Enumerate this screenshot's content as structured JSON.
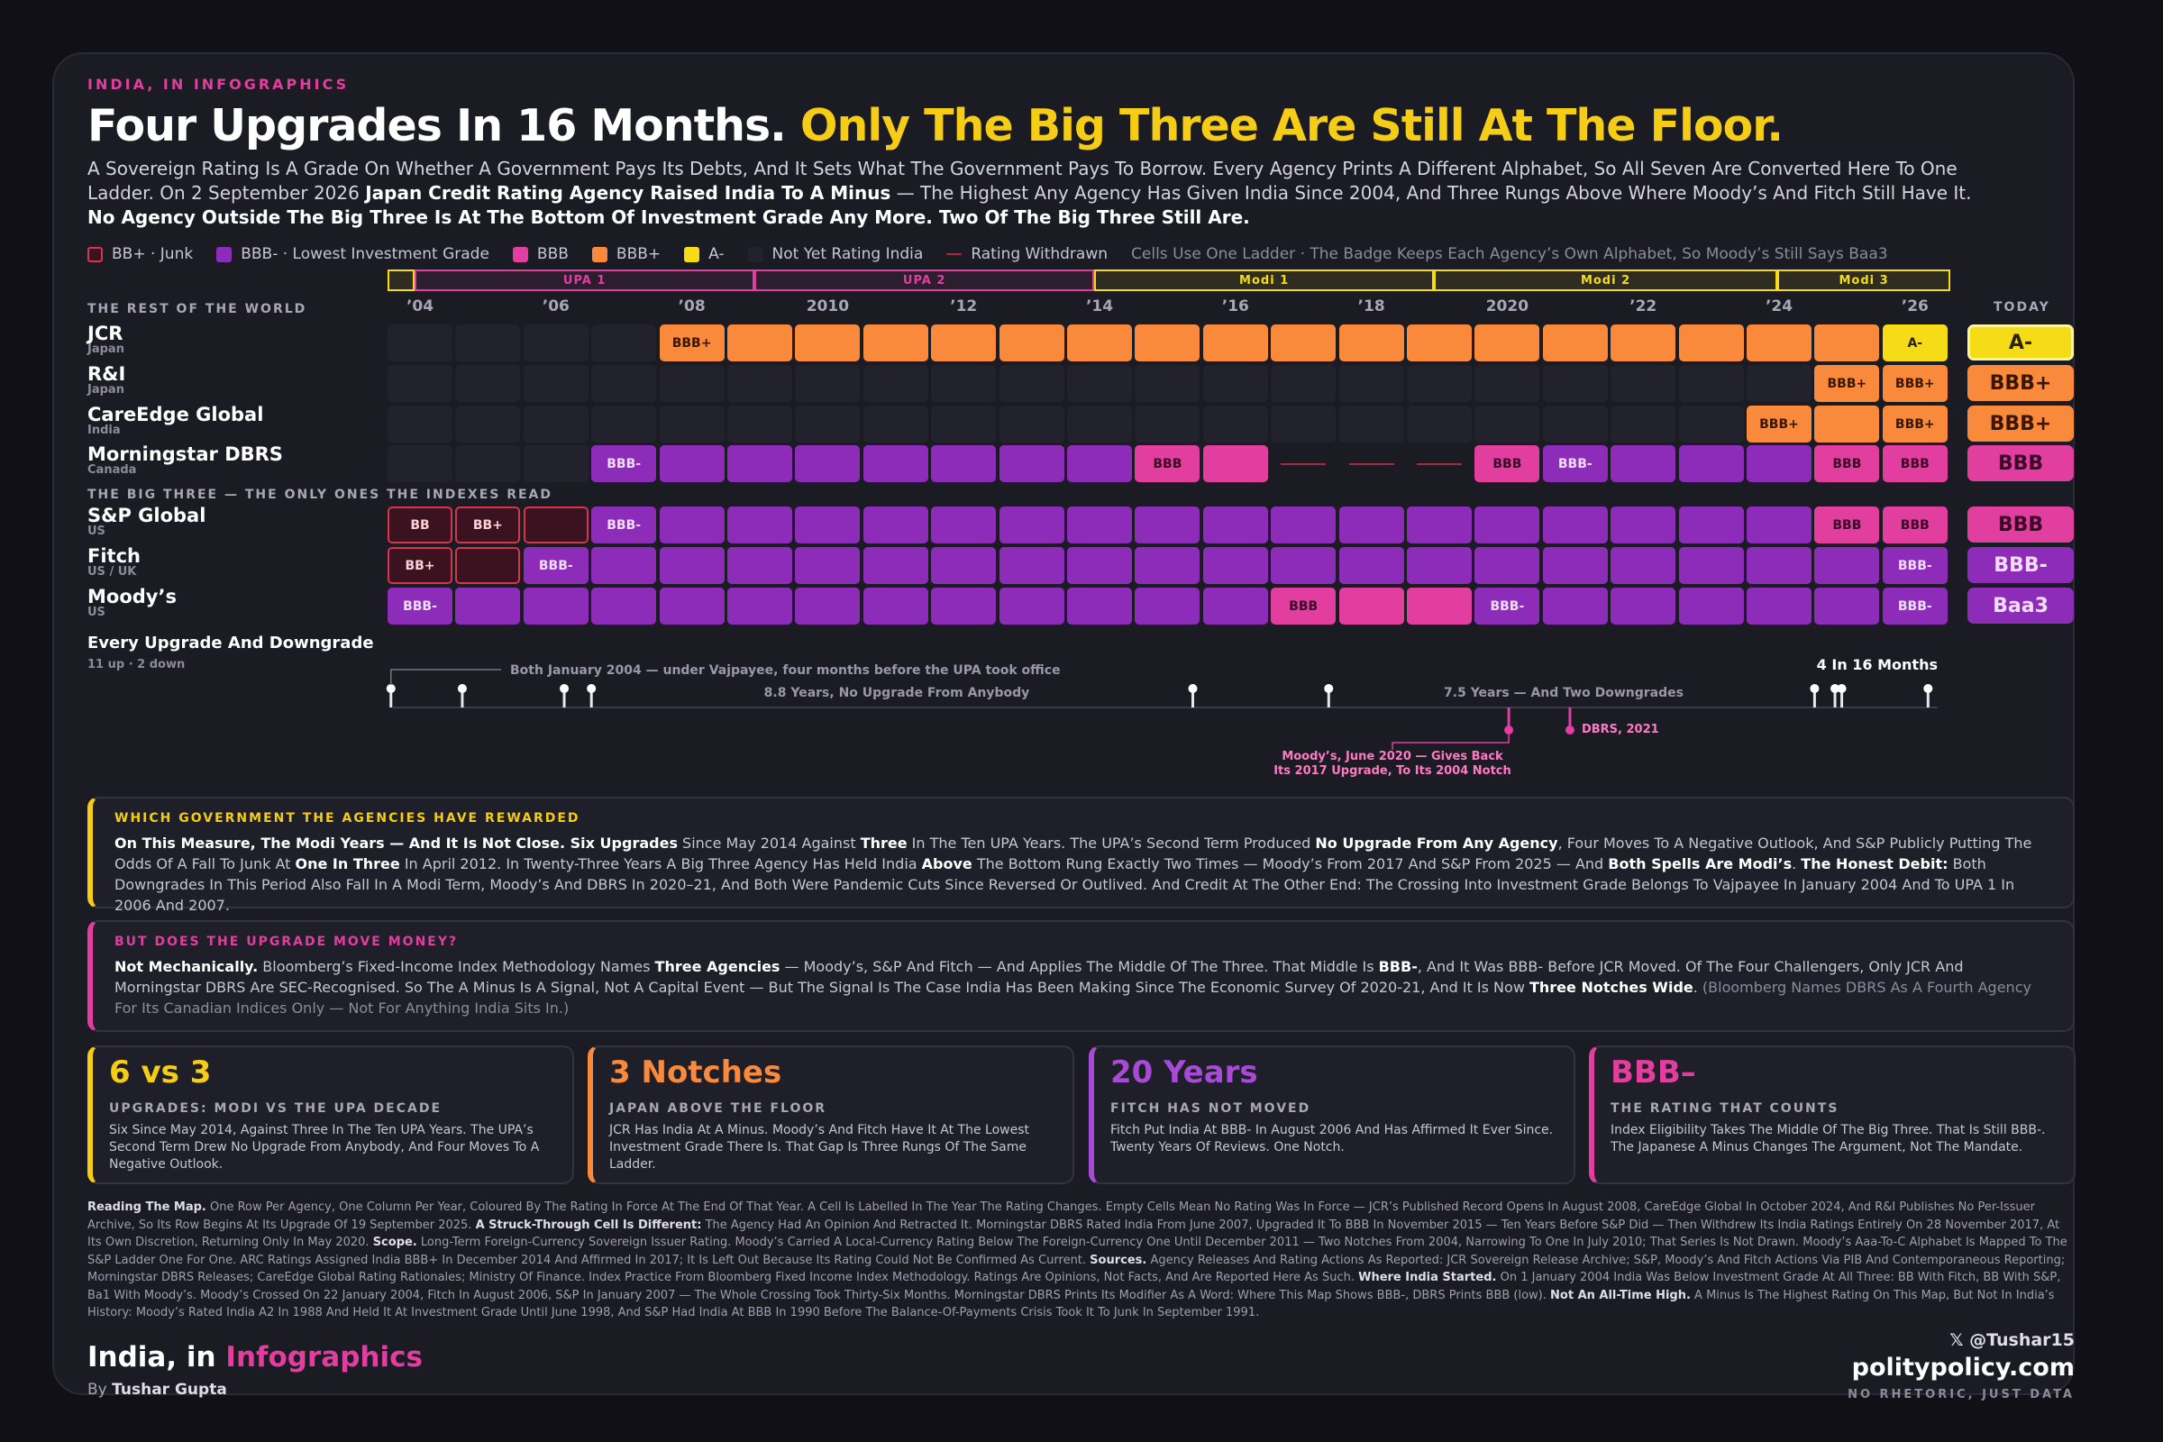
{
  "header": {
    "kicker": "INDIA, IN INFOGRAPHICS",
    "title_a": "Four Upgrades In 16 Months.",
    "title_b": "Only The Big Three Are Still At The Floor.",
    "intro_1": "A Sovereign Rating Is A Grade On Whether A Government Pays Its Debts, And It Sets What The Government Pays To Borrow. Every Agency Prints A Different Alphabet, So All Seven Are Converted Here To One Ladder. On 2 September 2026 ",
    "intro_b1": "Japan Credit Rating Agency Raised India To A Minus",
    "intro_2": " — The Highest Any Agency Has Given India Since 2004, And Three Rungs Above Where Moody’s And Fitch Still Have It. ",
    "intro_b2": "No Agency Outside The Big Three Is At The Bottom Of Investment Grade Any More. Two Of The Big Three Still Are."
  },
  "legend": {
    "items": [
      {
        "label": "BB+ · Junk",
        "color": "#3a1220",
        "border": "#d8334f"
      },
      {
        "label": "BBB- · Lowest Investment Grade",
        "color": "#8e2cba",
        "border": "#8e2cba"
      },
      {
        "label": "BBB",
        "color": "#e23ea0",
        "border": "#e23ea0"
      },
      {
        "label": "BBB+",
        "color": "#f98a3b",
        "border": "#f98a3b"
      },
      {
        "label": "A-",
        "color": "#f5dc16",
        "border": "#f5dc16"
      },
      {
        "label": "Not Yet Rating India",
        "color": "#22222c",
        "border": "#22222c"
      },
      {
        "label": "Rating Withdrawn",
        "color": "withdrawn",
        "border": ""
      }
    ],
    "note": "Cells Use One Ladder · The Badge Keeps Each Agency’s Own Alphabet, So Moody’s Still Says Baa3"
  },
  "colors": {
    "junk_fill": "#3a1220",
    "junk_border": "#d8334f",
    "bbbm": "#8e2cba",
    "bbb": "#e23ea0",
    "bbbp": "#f98a3b",
    "am": "#f5dc16",
    "empty": "#22222c",
    "withdrawn": "#a8283f"
  },
  "governments": [
    {
      "label": "",
      "start": 2004.0,
      "end": 2004.4,
      "color": "#f5dc16"
    },
    {
      "label": "UPA 1",
      "start": 2004.4,
      "end": 2009.4,
      "color": "#e23ea0"
    },
    {
      "label": "UPA 2",
      "start": 2009.4,
      "end": 2014.4,
      "color": "#e23ea0"
    },
    {
      "label": "Modi 1",
      "start": 2014.4,
      "end": 2019.4,
      "color": "#f5dc16"
    },
    {
      "label": "Modi 2",
      "start": 2019.4,
      "end": 2024.45,
      "color": "#f5dc16"
    },
    {
      "label": "Modi 3",
      "start": 2024.45,
      "end": 2027.0,
      "color": "#f5dc16"
    }
  ],
  "sections": {
    "rest": "THE REST OF THE WORLD",
    "big3": "THE BIG THREE — THE ONLY ONES THE INDEXES READ",
    "today": "TODAY"
  },
  "chart_data": {
    "type": "heatmap",
    "years": [
      2004,
      2005,
      2006,
      2007,
      2008,
      2009,
      2010,
      2011,
      2012,
      2013,
      2014,
      2015,
      2016,
      2017,
      2018,
      2019,
      2020,
      2021,
      2022,
      2023,
      2024,
      2025,
      2026
    ],
    "year_ticks": [
      "’04",
      "",
      "’06",
      "",
      "’08",
      "",
      "2010",
      "",
      "’12",
      "",
      "’14",
      "",
      "’16",
      "",
      "’18",
      "",
      "2020",
      "",
      "’22",
      "",
      "’24",
      "",
      "’26"
    ],
    "ladder": [
      "BB",
      "BB+",
      "BBB-",
      "BBB",
      "BBB+",
      "A-"
    ],
    "agencies": [
      {
        "name": "JCR",
        "country": "Japan",
        "group": "rest",
        "today": "A-",
        "ratings": [
          null,
          null,
          null,
          null,
          "BBB+",
          "BBB+",
          "BBB+",
          "BBB+",
          "BBB+",
          "BBB+",
          "BBB+",
          "BBB+",
          "BBB+",
          "BBB+",
          "BBB+",
          "BBB+",
          "BBB+",
          "BBB+",
          "BBB+",
          "BBB+",
          "BBB+",
          "BBB+",
          "A-"
        ],
        "labels": [
          "",
          "",
          "",
          "",
          "BBB+",
          "",
          "",
          "",
          "",
          "",
          "",
          "",
          "",
          "",
          "",
          "",
          "",
          "",
          "",
          "",
          "",
          "",
          "A-"
        ]
      },
      {
        "name": "R&I",
        "country": "Japan",
        "group": "rest",
        "today": "BBB+",
        "ratings": [
          null,
          null,
          null,
          null,
          null,
          null,
          null,
          null,
          null,
          null,
          null,
          null,
          null,
          null,
          null,
          null,
          null,
          null,
          null,
          null,
          null,
          "BBB+",
          "BBB+"
        ],
        "labels": [
          "",
          "",
          "",
          "",
          "",
          "",
          "",
          "",
          "",
          "",
          "",
          "",
          "",
          "",
          "",
          "",
          "",
          "",
          "",
          "",
          "",
          "BBB+",
          "BBB+"
        ]
      },
      {
        "name": "CareEdge Global",
        "country": "India",
        "group": "rest",
        "today": "BBB+",
        "ratings": [
          null,
          null,
          null,
          null,
          null,
          null,
          null,
          null,
          null,
          null,
          null,
          null,
          null,
          null,
          null,
          null,
          null,
          null,
          null,
          null,
          "BBB+",
          "BBB+",
          "BBB+"
        ],
        "labels": [
          "",
          "",
          "",
          "",
          "",
          "",
          "",
          "",
          "",
          "",
          "",
          "",
          "",
          "",
          "",
          "",
          "",
          "",
          "",
          "",
          "BBB+",
          "",
          "BBB+"
        ]
      },
      {
        "name": "Morningstar DBRS",
        "country": "Canada",
        "group": "rest",
        "today": "BBB",
        "ratings": [
          null,
          null,
          null,
          "BBB-",
          "BBB-",
          "BBB-",
          "BBB-",
          "BBB-",
          "BBB-",
          "BBB-",
          "BBB-",
          "BBB",
          "BBB",
          "W",
          "W",
          "W",
          "BBB",
          "BBB-",
          "BBB-",
          "BBB-",
          "BBB-",
          "BBB",
          "BBB"
        ],
        "labels": [
          "",
          "",
          "",
          "BBB-",
          "",
          "",
          "",
          "",
          "",
          "",
          "",
          "BBB",
          "",
          "",
          "",
          "",
          "BBB",
          "BBB-",
          "",
          "",
          "",
          "BBB",
          "BBB"
        ]
      },
      {
        "name": "S&P Global",
        "country": "US",
        "group": "big3",
        "today": "BBB",
        "ratings": [
          "BB",
          "BB+",
          "BB+",
          "BBB-",
          "BBB-",
          "BBB-",
          "BBB-",
          "BBB-",
          "BBB-",
          "BBB-",
          "BBB-",
          "BBB-",
          "BBB-",
          "BBB-",
          "BBB-",
          "BBB-",
          "BBB-",
          "BBB-",
          "BBB-",
          "BBB-",
          "BBB-",
          "BBB",
          "BBB"
        ],
        "labels": [
          "BB",
          "BB+",
          "",
          "BBB-",
          "",
          "",
          "",
          "",
          "",
          "",
          "",
          "",
          "",
          "",
          "",
          "",
          "",
          "",
          "",
          "",
          "",
          "BBB",
          "BBB"
        ]
      },
      {
        "name": "Fitch",
        "country": "US / UK",
        "group": "big3",
        "today": "BBB-",
        "ratings": [
          "BB+",
          "BB+",
          "BBB-",
          "BBB-",
          "BBB-",
          "BBB-",
          "BBB-",
          "BBB-",
          "BBB-",
          "BBB-",
          "BBB-",
          "BBB-",
          "BBB-",
          "BBB-",
          "BBB-",
          "BBB-",
          "BBB-",
          "BBB-",
          "BBB-",
          "BBB-",
          "BBB-",
          "BBB-",
          "BBB-"
        ],
        "labels": [
          "BB+",
          "",
          "BBB-",
          "",
          "",
          "",
          "",
          "",
          "",
          "",
          "",
          "",
          "",
          "",
          "",
          "",
          "",
          "",
          "",
          "",
          "",
          "",
          "BBB-"
        ]
      },
      {
        "name": "Moody’s",
        "country": "US",
        "group": "big3",
        "today": "Baa3",
        "ratings": [
          "BBB-",
          "BBB-",
          "BBB-",
          "BBB-",
          "BBB-",
          "BBB-",
          "BBB-",
          "BBB-",
          "BBB-",
          "BBB-",
          "BBB-",
          "BBB-",
          "BBB-",
          "BBB",
          "BBB",
          "BBB",
          "BBB-",
          "BBB-",
          "BBB-",
          "BBB-",
          "BBB-",
          "BBB-",
          "BBB-"
        ],
        "labels": [
          "BBB-",
          "",
          "",
          "",
          "",
          "",
          "",
          "",
          "",
          "",
          "",
          "",
          "",
          "BBB",
          "",
          "",
          "BBB-",
          "",
          "",
          "",
          "",
          "",
          "BBB-"
        ]
      }
    ],
    "events": {
      "title": "Every Upgrade And Downgrade",
      "sub": "11 up · 2 down",
      "up": [
        2004.05,
        2005.1,
        2006.6,
        2007.0,
        2015.85,
        2017.85,
        2025.0,
        2025.3,
        2025.4,
        2026.67
      ],
      "down": [
        2020.5,
        2021.4
      ],
      "labels": {
        "first": "Both January 2004 — under Vajpayee, four months before the UPA took office",
        "gap1": "8.8 Years, No Upgrade From Anybody",
        "gap2": "7.5 Years — And Two Downgrades",
        "last": "4 In 16 Months",
        "dbrs": "DBRS, 2021",
        "moodys_1": "Moody’s, June 2020 — Gives Back",
        "moodys_2": "Its 2017 Upgrade, To Its 2004 Notch"
      }
    }
  },
  "box1": {
    "title": "WHICH GOVERNMENT THE AGENCIES HAVE REWARDED",
    "p": [
      {
        "b": "On This Measure, The Modi Years — And It Is Not Close. Six Upgrades"
      },
      {
        "t": " Since May 2014 Against "
      },
      {
        "b": "Three"
      },
      {
        "t": " In The Ten UPA Years. The UPA’s Second Term Produced "
      },
      {
        "b": "No Upgrade From Any Agency"
      },
      {
        "t": ", Four Moves To A Negative Outlook, And S&P Publicly Putting The Odds Of A Fall To Junk At "
      },
      {
        "b": "One In Three"
      },
      {
        "t": " In April 2012. In Twenty-Three Years A Big Three Agency Has Held India "
      },
      {
        "b": "Above"
      },
      {
        "t": " The Bottom Rung Exactly Two Times — Moody’s From 2017 And S&P From 2025 — And "
      },
      {
        "b": "Both Spells Are Modi’s"
      },
      {
        "t": ". "
      },
      {
        "b": "The Honest Debit:"
      },
      {
        "t": " Both Downgrades In This Period Also Fall In A Modi Term, Moody’s And DBRS In 2020–21, And Both Were Pandemic Cuts Since Reversed Or Outlived. And Credit At The Other End: The Crossing Into Investment Grade Belongs To Vajpayee In January 2004 And To UPA 1 In 2006 And 2007."
      }
    ]
  },
  "box2": {
    "title": "BUT DOES THE UPGRADE MOVE MONEY?",
    "p": [
      {
        "b": "Not Mechanically."
      },
      {
        "t": " Bloomberg’s Fixed-Income Index Methodology Names "
      },
      {
        "b": "Three Agencies"
      },
      {
        "t": " — Moody’s, S&P And Fitch — And Applies The Middle Of The Three. That Middle Is "
      },
      {
        "b": "BBB-"
      },
      {
        "t": ", And It Was BBB- Before JCR Moved. Of The Four Challengers, Only JCR And Morningstar DBRS Are SEC-Recognised. So The A Minus Is A Signal, Not A Capital Event — But The Signal Is The Case India Has Been Making Since The Economic Survey Of 2020-21, And It Is Now "
      },
      {
        "b": "Three Notches Wide"
      },
      {
        "t": ". "
      },
      {
        "m": "(Bloomberg Names DBRS As A Fourth Agency For Its Canadian Indices Only — Not For Anything India Sits In.)"
      }
    ]
  },
  "stats": [
    {
      "big": "6 vs 3",
      "sub": "UPGRADES: MODI VS THE UPA DECADE",
      "txt": "Six Since May 2014, Against Three In The Ten UPA Years. The UPA’s Second Term Drew No Upgrade From Anybody, And Four Moves To A Negative Outlook.",
      "color": "#f5cc16"
    },
    {
      "big": "3 Notches",
      "sub": "JAPAN ABOVE THE FLOOR",
      "txt": "JCR Has India At A Minus. Moody’s And Fitch Have It At The Lowest Investment Grade There Is. That Gap Is Three Rungs Of The Same Ladder.",
      "color": "#f98a3b"
    },
    {
      "big": "20 Years",
      "sub": "FITCH HAS NOT MOVED",
      "txt": "Fitch Put India At BBB- In August 2006 And Has Affirmed It Ever Since. Twenty Years Of Reviews. One Notch.",
      "color": "#a74bd6"
    },
    {
      "big": "BBB–",
      "sub": "THE RATING THAT COUNTS",
      "txt": "Index Eligibility Takes The Middle Of The Big Three. That Is Still BBB-. The Japanese A Minus Changes The Argument, Not The Mandate.",
      "color": "#e23ea0"
    }
  ],
  "footnote": [
    {
      "b": "Reading The Map."
    },
    {
      "t": " One Row Per Agency, One Column Per Year, Coloured By The Rating In Force At The End Of That Year. A Cell Is Labelled In The Year The Rating Changes. Empty Cells Mean No Rating Was In Force — JCR’s Published Record Opens In August 2008, CareEdge Global In October 2024, And R&I Publishes No Per-Issuer Archive, So Its Row Begins At Its Upgrade Of 19 September 2025. "
    },
    {
      "b": "A Struck-Through Cell Is Different:"
    },
    {
      "t": " The Agency Had An Opinion And Retracted It. Morningstar DBRS Rated India From June 2007, Upgraded It To BBB In November 2015 — Ten Years Before S&P Did — Then Withdrew Its India Ratings Entirely On 28 November 2017, At Its Own Discretion, Returning Only In May 2020. "
    },
    {
      "b": "Scope."
    },
    {
      "t": " Long-Term Foreign-Currency Sovereign Issuer Rating. Moody’s Carried A Local-Currency Rating Below The Foreign-Currency One Until December 2011 — Two Notches From 2004, Narrowing To One In July 2010; That Series Is Not Drawn. Moody’s Aaa-To-C Alphabet Is Mapped To The S&P Ladder One For One. ARC Ratings Assigned India BBB+ In December 2014 And Affirmed In 2017; It Is Left Out Because Its Rating Could Not Be Confirmed As Current. "
    },
    {
      "b": "Sources."
    },
    {
      "t": " Agency Releases And Rating Actions As Reported: JCR Sovereign Release Archive; S&P, Moody’s And Fitch Actions Via PIB And Contemporaneous Reporting; Morningstar DBRS Releases; CareEdge Global Rating Rationales; Ministry Of Finance. Index Practice From Bloomberg Fixed Income Index Methodology. Ratings Are Opinions, Not Facts, And Are Reported Here As Such. "
    },
    {
      "b": "Where India Started."
    },
    {
      "t": " On 1 January 2004 India Was Below Investment Grade At All Three: BB With Fitch, BB With S&P, Ba1 With Moody’s. Moody’s Crossed On 22 January 2004, Fitch In August 2006, S&P In January 2007 — The Whole Crossing Took Thirty-Six Months. Morningstar DBRS Prints Its Modifier As A Word: Where This Map Shows BBB-, DBRS Prints BBB (low). "
    },
    {
      "b": "Not An All-Time High."
    },
    {
      "t": " A Minus Is The Highest Rating On This Map, But Not In India’s History: Moody’s Rated India A2 In 1988 And Held It At Investment Grade Until June 1998, And S&P Had India At BBB In 1990 Before The Balance-Of-Payments Crisis Took It To Junk In September 1991."
    }
  ],
  "footer": {
    "brand_a": "India, in ",
    "brand_b": "Infographics",
    "by_pre": "By ",
    "by_name": "Tushar Gupta",
    "handle": "𝕏 @Tushar15",
    "site": "politypolicy.com",
    "tag": "NO RHETORIC, JUST DATA"
  }
}
